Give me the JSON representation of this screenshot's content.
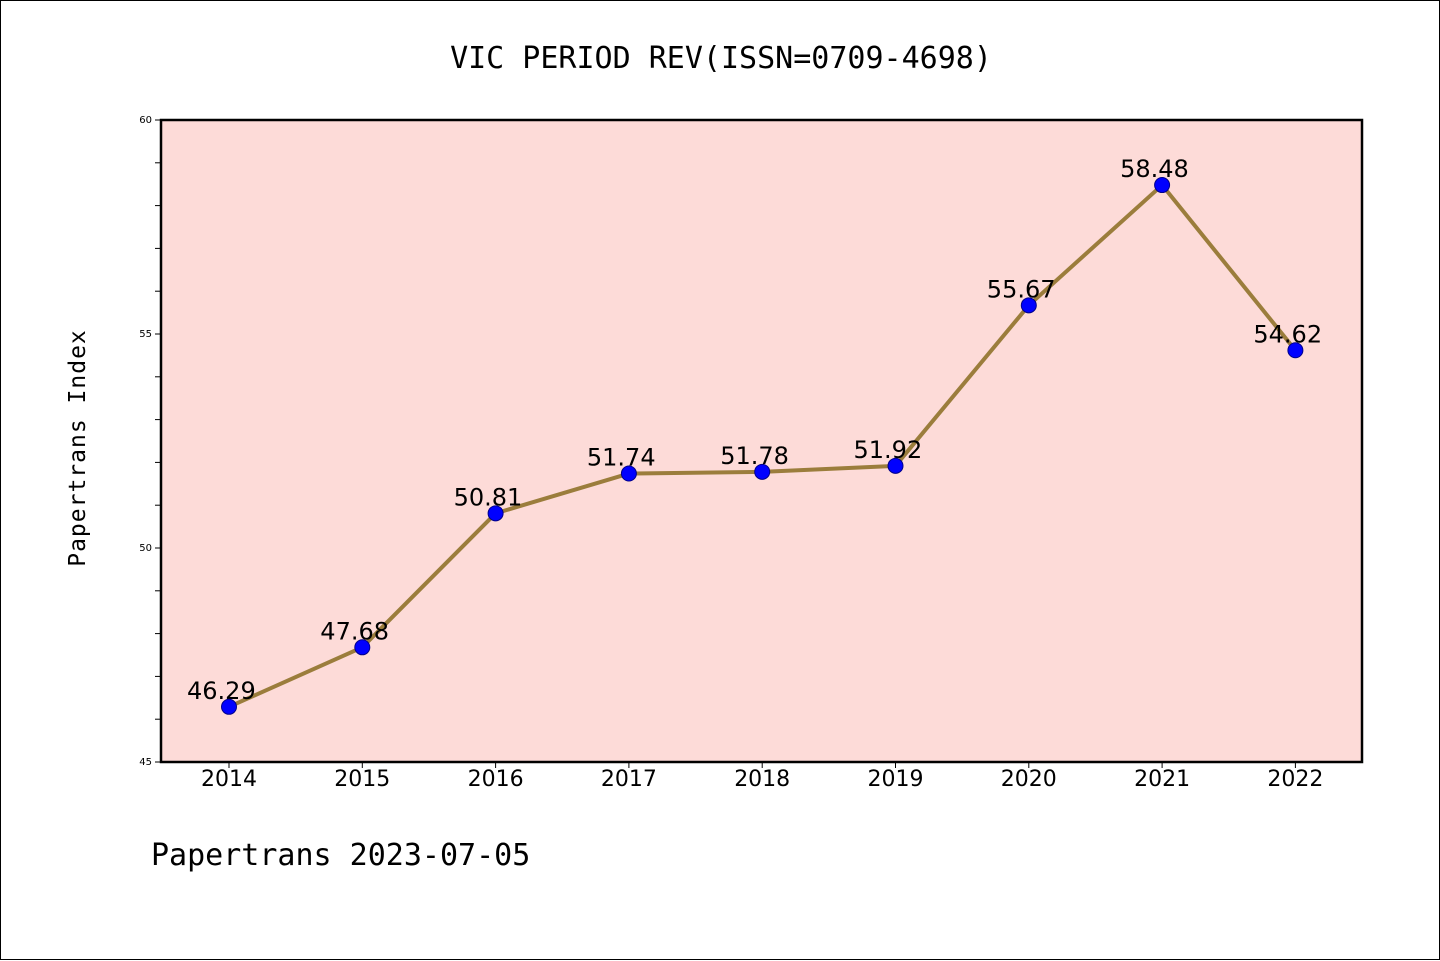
{
  "chart_data": {
    "type": "line",
    "title": "VIC PERIOD REV(ISSN=0709-4698)",
    "xlabel": "",
    "ylabel": "Papertrans Index",
    "footer": "Papertrans 2023-07-05",
    "categories": [
      "2014",
      "2015",
      "2016",
      "2017",
      "2018",
      "2019",
      "2020",
      "2021",
      "2022"
    ],
    "series": [
      {
        "values": [
          46.29,
          47.68,
          50.81,
          51.74,
          51.78,
          51.92,
          55.67,
          58.48,
          54.62
        ],
        "labels": [
          "46.29",
          "47.68",
          "50.81",
          "51.74",
          "51.78",
          "51.92",
          "55.67",
          "58.48",
          "54.62"
        ]
      }
    ],
    "ylim": [
      45,
      60
    ],
    "yticks": [
      "45",
      "50",
      "55",
      "60"
    ],
    "grid": false,
    "legend": "none",
    "colors": {
      "plot_background": "#fddbd8",
      "line": "#9b7d3c",
      "marker": "#0000ff",
      "marker_edge": "#00008b",
      "axis": "#000000"
    }
  }
}
